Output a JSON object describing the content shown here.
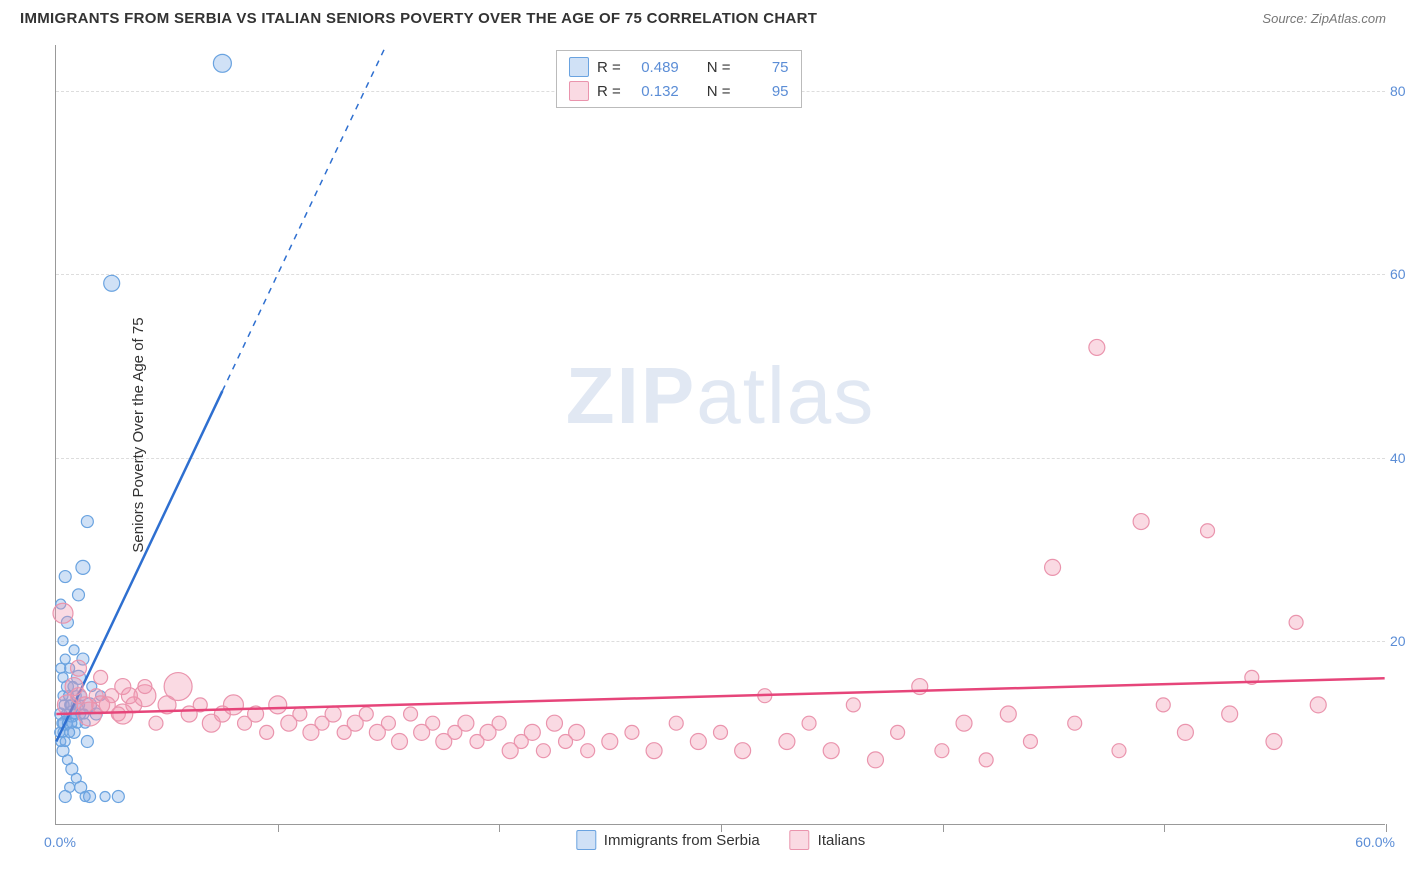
{
  "header": {
    "title": "IMMIGRANTS FROM SERBIA VS ITALIAN SENIORS POVERTY OVER THE AGE OF 75 CORRELATION CHART",
    "source_label": "Source:",
    "source_value": "ZipAtlas.com"
  },
  "watermark": {
    "bold": "ZIP",
    "light": "atlas"
  },
  "chart": {
    "type": "scatter-with-regression",
    "background_color": "#ffffff",
    "grid_color": "#dddddd",
    "axis_color": "#999999",
    "x_axis": {
      "min": 0,
      "max": 60,
      "origin_label": "0.0%",
      "max_label": "60.0%",
      "tick_positions_pct": [
        0,
        10,
        20,
        30,
        40,
        50,
        60
      ]
    },
    "y_axis": {
      "label": "Seniors Poverty Over the Age of 75",
      "min": 0,
      "max": 85,
      "ticks": [
        {
          "v": 20,
          "label": "20.0%"
        },
        {
          "v": 40,
          "label": "40.0%"
        },
        {
          "v": 60,
          "label": "60.0%"
        },
        {
          "v": 80,
          "label": "80.0%"
        }
      ],
      "tick_color": "#5b8dd6"
    },
    "series": [
      {
        "id": "serbia",
        "label": "Immigrants from Serbia",
        "color_fill": "rgba(120,170,230,0.35)",
        "color_stroke": "#6aa3e0",
        "trend_color": "#2e6fd0",
        "trend_width": 2.5,
        "trend_intercept": 9,
        "trend_slope": 5.1,
        "trend_solid_xmax": 7.5,
        "stats": {
          "R": "0.489",
          "N": "75"
        },
        "points": [
          {
            "x": 0.2,
            "y": 12,
            "r": 6
          },
          {
            "x": 0.3,
            "y": 14,
            "r": 5
          },
          {
            "x": 0.4,
            "y": 11,
            "r": 7
          },
          {
            "x": 0.5,
            "y": 15,
            "r": 6
          },
          {
            "x": 0.6,
            "y": 13,
            "r": 5
          },
          {
            "x": 0.7,
            "y": 12,
            "r": 8
          },
          {
            "x": 0.8,
            "y": 10,
            "r": 6
          },
          {
            "x": 0.9,
            "y": 14,
            "r": 5
          },
          {
            "x": 1.0,
            "y": 16,
            "r": 7
          },
          {
            "x": 1.1,
            "y": 12,
            "r": 5
          },
          {
            "x": 1.2,
            "y": 18,
            "r": 6
          },
          {
            "x": 1.3,
            "y": 11,
            "r": 5
          },
          {
            "x": 1.4,
            "y": 9,
            "r": 6
          },
          {
            "x": 1.5,
            "y": 13,
            "r": 7
          },
          {
            "x": 1.6,
            "y": 15,
            "r": 5
          },
          {
            "x": 1.8,
            "y": 12,
            "r": 6
          },
          {
            "x": 2.0,
            "y": 14,
            "r": 5
          },
          {
            "x": 0.3,
            "y": 8,
            "r": 6
          },
          {
            "x": 0.5,
            "y": 7,
            "r": 5
          },
          {
            "x": 0.7,
            "y": 6,
            "r": 6
          },
          {
            "x": 0.9,
            "y": 5,
            "r": 5
          },
          {
            "x": 1.1,
            "y": 4,
            "r": 6
          },
          {
            "x": 1.3,
            "y": 3,
            "r": 5
          },
          {
            "x": 0.4,
            "y": 3,
            "r": 6
          },
          {
            "x": 0.6,
            "y": 4,
            "r": 5
          },
          {
            "x": 1.5,
            "y": 3,
            "r": 6
          },
          {
            "x": 2.2,
            "y": 3,
            "r": 5
          },
          {
            "x": 2.8,
            "y": 3,
            "r": 6
          },
          {
            "x": 0.3,
            "y": 20,
            "r": 5
          },
          {
            "x": 0.5,
            "y": 22,
            "r": 6
          },
          {
            "x": 0.8,
            "y": 19,
            "r": 5
          },
          {
            "x": 1.0,
            "y": 25,
            "r": 6
          },
          {
            "x": 1.2,
            "y": 28,
            "r": 7
          },
          {
            "x": 1.4,
            "y": 33,
            "r": 6
          },
          {
            "x": 0.2,
            "y": 24,
            "r": 5
          },
          {
            "x": 0.4,
            "y": 27,
            "r": 6
          },
          {
            "x": 2.5,
            "y": 59,
            "r": 8
          },
          {
            "x": 7.5,
            "y": 83,
            "r": 9
          },
          {
            "x": 0.15,
            "y": 10,
            "r": 5
          },
          {
            "x": 0.25,
            "y": 11,
            "r": 5
          },
          {
            "x": 0.35,
            "y": 13,
            "r": 5
          },
          {
            "x": 0.45,
            "y": 12,
            "r": 5
          },
          {
            "x": 0.55,
            "y": 14,
            "r": 5
          },
          {
            "x": 0.65,
            "y": 13,
            "r": 5
          },
          {
            "x": 0.75,
            "y": 15,
            "r": 5
          },
          {
            "x": 0.85,
            "y": 12,
            "r": 5
          },
          {
            "x": 0.95,
            "y": 11,
            "r": 5
          },
          {
            "x": 1.05,
            "y": 13,
            "r": 5
          },
          {
            "x": 1.15,
            "y": 14,
            "r": 5
          },
          {
            "x": 1.25,
            "y": 12,
            "r": 5
          },
          {
            "x": 0.2,
            "y": 9,
            "r": 5
          },
          {
            "x": 0.3,
            "y": 10,
            "r": 5
          },
          {
            "x": 0.4,
            "y": 9,
            "r": 5
          },
          {
            "x": 0.5,
            "y": 11,
            "r": 5
          },
          {
            "x": 0.6,
            "y": 10,
            "r": 5
          },
          {
            "x": 0.7,
            "y": 11,
            "r": 5
          },
          {
            "x": 0.8,
            "y": 12,
            "r": 5
          },
          {
            "x": 0.9,
            "y": 13,
            "r": 5
          },
          {
            "x": 0.2,
            "y": 17,
            "r": 5
          },
          {
            "x": 0.3,
            "y": 16,
            "r": 5
          },
          {
            "x": 0.4,
            "y": 18,
            "r": 5
          },
          {
            "x": 0.6,
            "y": 17,
            "r": 5
          }
        ]
      },
      {
        "id": "italians",
        "label": "Italians",
        "color_fill": "rgba(240,150,175,0.35)",
        "color_stroke": "#ea94ad",
        "trend_color": "#e6457a",
        "trend_width": 2.5,
        "trend_intercept": 12,
        "trend_slope": 0.065,
        "trend_solid_xmax": 60,
        "stats": {
          "R": "0.132",
          "N": "95"
        },
        "points": [
          {
            "x": 0.5,
            "y": 13,
            "r": 10
          },
          {
            "x": 1,
            "y": 14,
            "r": 8
          },
          {
            "x": 1.5,
            "y": 12,
            "r": 12
          },
          {
            "x": 2,
            "y": 13,
            "r": 9
          },
          {
            "x": 2.5,
            "y": 14,
            "r": 7
          },
          {
            "x": 3,
            "y": 12,
            "r": 10
          },
          {
            "x": 3.5,
            "y": 13,
            "r": 8
          },
          {
            "x": 4,
            "y": 14,
            "r": 11
          },
          {
            "x": 4.5,
            "y": 11,
            "r": 7
          },
          {
            "x": 5,
            "y": 13,
            "r": 9
          },
          {
            "x": 5.5,
            "y": 15,
            "r": 14
          },
          {
            "x": 6,
            "y": 12,
            "r": 8
          },
          {
            "x": 6.5,
            "y": 13,
            "r": 7
          },
          {
            "x": 7,
            "y": 11,
            "r": 9
          },
          {
            "x": 7.5,
            "y": 12,
            "r": 8
          },
          {
            "x": 8,
            "y": 13,
            "r": 10
          },
          {
            "x": 8.5,
            "y": 11,
            "r": 7
          },
          {
            "x": 9,
            "y": 12,
            "r": 8
          },
          {
            "x": 9.5,
            "y": 10,
            "r": 7
          },
          {
            "x": 10,
            "y": 13,
            "r": 9
          },
          {
            "x": 10.5,
            "y": 11,
            "r": 8
          },
          {
            "x": 11,
            "y": 12,
            "r": 7
          },
          {
            "x": 11.5,
            "y": 10,
            "r": 8
          },
          {
            "x": 12,
            "y": 11,
            "r": 7
          },
          {
            "x": 12.5,
            "y": 12,
            "r": 8
          },
          {
            "x": 13,
            "y": 10,
            "r": 7
          },
          {
            "x": 13.5,
            "y": 11,
            "r": 8
          },
          {
            "x": 14,
            "y": 12,
            "r": 7
          },
          {
            "x": 14.5,
            "y": 10,
            "r": 8
          },
          {
            "x": 15,
            "y": 11,
            "r": 7
          },
          {
            "x": 15.5,
            "y": 9,
            "r": 8
          },
          {
            "x": 16,
            "y": 12,
            "r": 7
          },
          {
            "x": 16.5,
            "y": 10,
            "r": 8
          },
          {
            "x": 17,
            "y": 11,
            "r": 7
          },
          {
            "x": 17.5,
            "y": 9,
            "r": 8
          },
          {
            "x": 18,
            "y": 10,
            "r": 7
          },
          {
            "x": 18.5,
            "y": 11,
            "r": 8
          },
          {
            "x": 19,
            "y": 9,
            "r": 7
          },
          {
            "x": 19.5,
            "y": 10,
            "r": 8
          },
          {
            "x": 20,
            "y": 11,
            "r": 7
          },
          {
            "x": 20.5,
            "y": 8,
            "r": 8
          },
          {
            "x": 21,
            "y": 9,
            "r": 7
          },
          {
            "x": 21.5,
            "y": 10,
            "r": 8
          },
          {
            "x": 22,
            "y": 8,
            "r": 7
          },
          {
            "x": 22.5,
            "y": 11,
            "r": 8
          },
          {
            "x": 23,
            "y": 9,
            "r": 7
          },
          {
            "x": 23.5,
            "y": 10,
            "r": 8
          },
          {
            "x": 24,
            "y": 8,
            "r": 7
          },
          {
            "x": 25,
            "y": 9,
            "r": 8
          },
          {
            "x": 26,
            "y": 10,
            "r": 7
          },
          {
            "x": 27,
            "y": 8,
            "r": 8
          },
          {
            "x": 28,
            "y": 11,
            "r": 7
          },
          {
            "x": 29,
            "y": 9,
            "r": 8
          },
          {
            "x": 30,
            "y": 10,
            "r": 7
          },
          {
            "x": 31,
            "y": 8,
            "r": 8
          },
          {
            "x": 32,
            "y": 14,
            "r": 7
          },
          {
            "x": 33,
            "y": 9,
            "r": 8
          },
          {
            "x": 34,
            "y": 11,
            "r": 7
          },
          {
            "x": 35,
            "y": 8,
            "r": 8
          },
          {
            "x": 36,
            "y": 13,
            "r": 7
          },
          {
            "x": 37,
            "y": 7,
            "r": 8
          },
          {
            "x": 38,
            "y": 10,
            "r": 7
          },
          {
            "x": 39,
            "y": 15,
            "r": 8
          },
          {
            "x": 40,
            "y": 8,
            "r": 7
          },
          {
            "x": 41,
            "y": 11,
            "r": 8
          },
          {
            "x": 42,
            "y": 7,
            "r": 7
          },
          {
            "x": 43,
            "y": 12,
            "r": 8
          },
          {
            "x": 44,
            "y": 9,
            "r": 7
          },
          {
            "x": 45,
            "y": 28,
            "r": 8
          },
          {
            "x": 46,
            "y": 11,
            "r": 7
          },
          {
            "x": 47,
            "y": 52,
            "r": 8
          },
          {
            "x": 48,
            "y": 8,
            "r": 7
          },
          {
            "x": 49,
            "y": 33,
            "r": 8
          },
          {
            "x": 50,
            "y": 13,
            "r": 7
          },
          {
            "x": 51,
            "y": 10,
            "r": 8
          },
          {
            "x": 52,
            "y": 32,
            "r": 7
          },
          {
            "x": 53,
            "y": 12,
            "r": 8
          },
          {
            "x": 54,
            "y": 16,
            "r": 7
          },
          {
            "x": 55,
            "y": 9,
            "r": 8
          },
          {
            "x": 56,
            "y": 22,
            "r": 7
          },
          {
            "x": 57,
            "y": 13,
            "r": 8
          },
          {
            "x": 0.3,
            "y": 23,
            "r": 10
          },
          {
            "x": 1,
            "y": 17,
            "r": 8
          },
          {
            "x": 2,
            "y": 16,
            "r": 7
          },
          {
            "x": 3,
            "y": 15,
            "r": 8
          },
          {
            "x": 4,
            "y": 15,
            "r": 7
          },
          {
            "x": 0.8,
            "y": 15,
            "r": 9
          },
          {
            "x": 1.3,
            "y": 13,
            "r": 8
          },
          {
            "x": 1.8,
            "y": 14,
            "r": 7
          },
          {
            "x": 2.3,
            "y": 13,
            "r": 8
          },
          {
            "x": 2.8,
            "y": 12,
            "r": 7
          },
          {
            "x": 3.3,
            "y": 14,
            "r": 8
          }
        ]
      }
    ]
  },
  "legend_top": {
    "R_label": "R =",
    "N_label": "N ="
  }
}
